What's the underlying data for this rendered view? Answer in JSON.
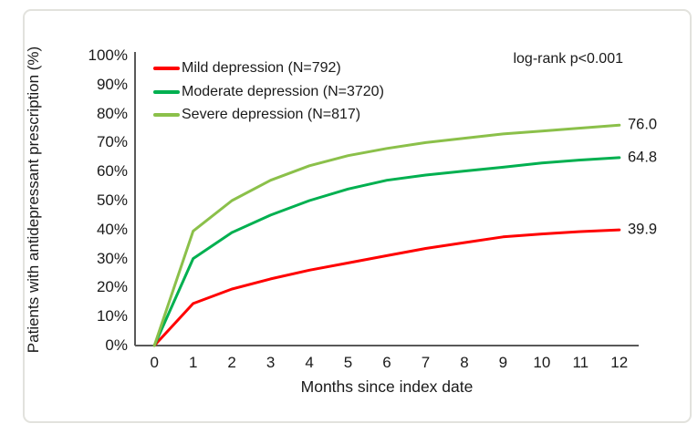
{
  "figure": {
    "annotation": "log-rank p<0.001"
  },
  "chart_data": {
    "type": "line",
    "title": "",
    "xlabel": "Months since index date",
    "ylabel": "Patients with antidepressant prescription (%)",
    "annotation": "log-rank p<0.001",
    "x": [
      0,
      1,
      2,
      3,
      4,
      5,
      6,
      7,
      8,
      9,
      10,
      11,
      12
    ],
    "x_tick_labels": [
      "0",
      "1",
      "2",
      "3",
      "4",
      "5",
      "6",
      "7",
      "8",
      "9",
      "10",
      "11",
      "12"
    ],
    "y_tick_labels": [
      "0%",
      "10%",
      "20%",
      "30%",
      "40%",
      "50%",
      "60%",
      "70%",
      "80%",
      "90%",
      "100%"
    ],
    "ylim": [
      0,
      100
    ],
    "grid": false,
    "legend_position": "top-left-inside",
    "axis_color": "#595959",
    "series": [
      {
        "name": "Mild depression (N=792)",
        "color": "#FF0000",
        "end_label": "39.9",
        "values": [
          0,
          14.5,
          19.5,
          23,
          26,
          28.5,
          31,
          33.5,
          35.5,
          37.5,
          38.5,
          39.3,
          39.9
        ]
      },
      {
        "name": "Moderate depression (N=3720)",
        "color": "#00B050",
        "end_label": "64.8",
        "values": [
          0,
          30,
          39,
          45,
          50,
          54,
          57,
          58.8,
          60.2,
          61.5,
          63,
          64,
          64.8
        ]
      },
      {
        "name": "Severe depression (N=817)",
        "color": "#8BC04A",
        "end_label": "76.0",
        "values": [
          0,
          39.5,
          50,
          57,
          62,
          65.5,
          68,
          70,
          71.5,
          73,
          74,
          75,
          76
        ]
      }
    ]
  }
}
